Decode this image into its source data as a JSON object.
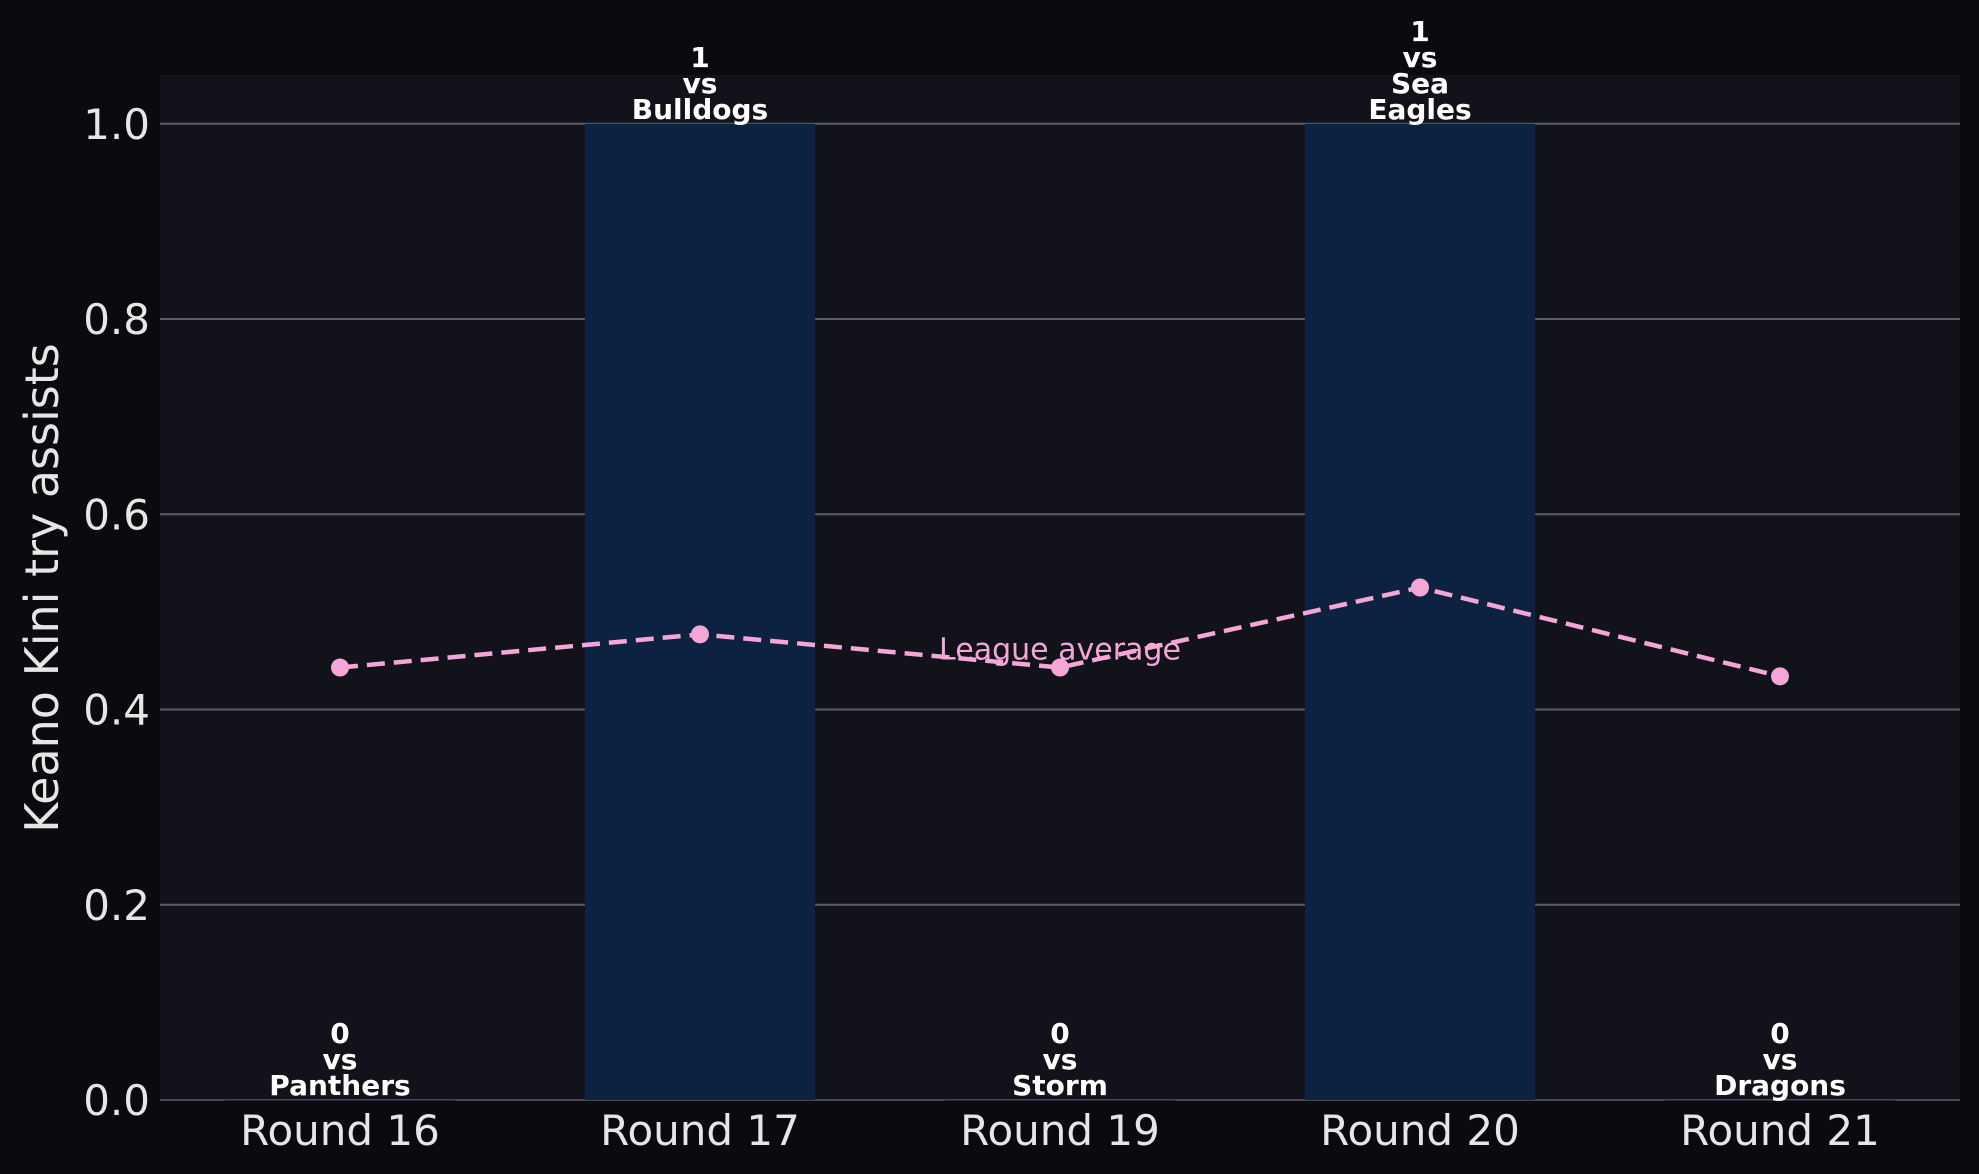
{
  "chart_data": {
    "type": "bar",
    "ylabel": "Keano Kini try assists",
    "xlabel": "",
    "ylim": [
      0,
      1.05
    ],
    "yticks": [
      "0.0",
      "0.2",
      "0.4",
      "0.6",
      "0.8",
      "1.0"
    ],
    "grid": "y",
    "categories": [
      "Round 16",
      "Round 17",
      "Round 19",
      "Round 20",
      "Round 21"
    ],
    "values": [
      0,
      1,
      0,
      1,
      0
    ],
    "bar_labels": [
      [
        "0",
        "vs",
        "Panthers"
      ],
      [
        "1",
        "vs",
        "Bulldogs"
      ],
      [
        "0",
        "vs",
        "Storm"
      ],
      [
        "1",
        "vs",
        "Sea",
        "Eagles"
      ],
      [
        "0",
        "vs",
        "Dragons"
      ]
    ],
    "line": {
      "name": "League average",
      "values": [
        0.443,
        0.477,
        0.443,
        0.525,
        0.434
      ]
    },
    "colors": {
      "figure_bg": "#0b0b0f",
      "axes_bg": "#12131a",
      "bar": "#0d2240",
      "grid": "#5c5c64",
      "line": "#f4a6d7",
      "text": "#e6e6e6"
    }
  }
}
